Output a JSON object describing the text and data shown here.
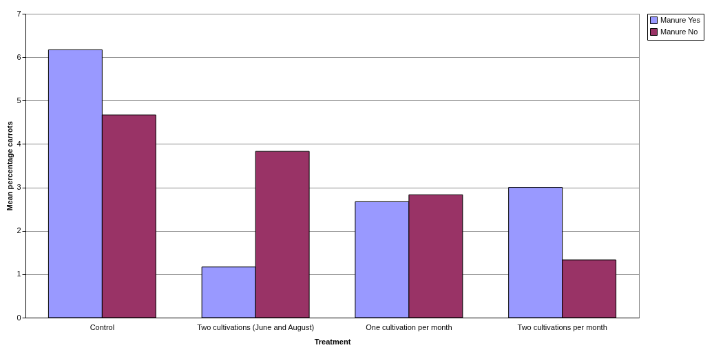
{
  "chart_data": {
    "type": "bar",
    "xlabel": "Treatment",
    "ylabel": "Mean percentage carrots",
    "categories": [
      "Control",
      "Two cultivations (June and August)",
      "One cultivation per month",
      "Two cultivations per month"
    ],
    "series": [
      {
        "name": "Manure Yes",
        "color": "#9999ff",
        "values": [
          6.17,
          1.17,
          2.67,
          3.0
        ]
      },
      {
        "name": "Manure No",
        "color": "#993366",
        "values": [
          4.67,
          3.83,
          2.83,
          1.33
        ]
      }
    ],
    "ylim": [
      0,
      7
    ],
    "yticks": [
      0,
      1,
      2,
      3,
      4,
      5,
      6,
      7
    ],
    "grid": "y",
    "legend": "right"
  }
}
